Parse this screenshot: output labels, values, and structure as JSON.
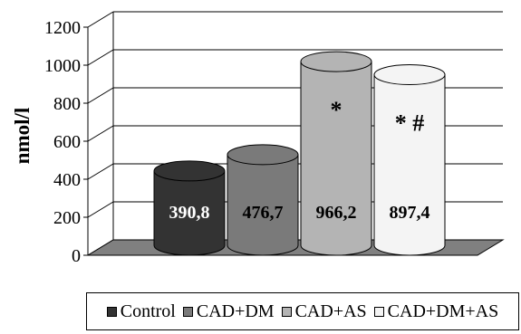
{
  "chart_data": {
    "type": "bar",
    "style": "3d-cylinder",
    "ylabel": "nmol/l",
    "ylim": [
      0,
      1200
    ],
    "yticks": [
      "0",
      "200",
      "400",
      "600",
      "800",
      "1000",
      "1200"
    ],
    "grid": true,
    "legend_position": "bottom",
    "series": [
      {
        "name": "Control",
        "value": 390.8,
        "label": "390,8",
        "annotation": "",
        "color": "#333333"
      },
      {
        "name": "CAD+DM",
        "value": 476.7,
        "label": "476,7",
        "annotation": "",
        "color": "#7a7a7a"
      },
      {
        "name": "CAD+AS",
        "value": 966.2,
        "label": "966,2",
        "annotation": "*",
        "color": "#b4b4b4"
      },
      {
        "name": "CAD+DM+AS",
        "value": 897.4,
        "label": "897,4",
        "annotation": "*  #",
        "color": "#f4f4f4"
      }
    ]
  }
}
